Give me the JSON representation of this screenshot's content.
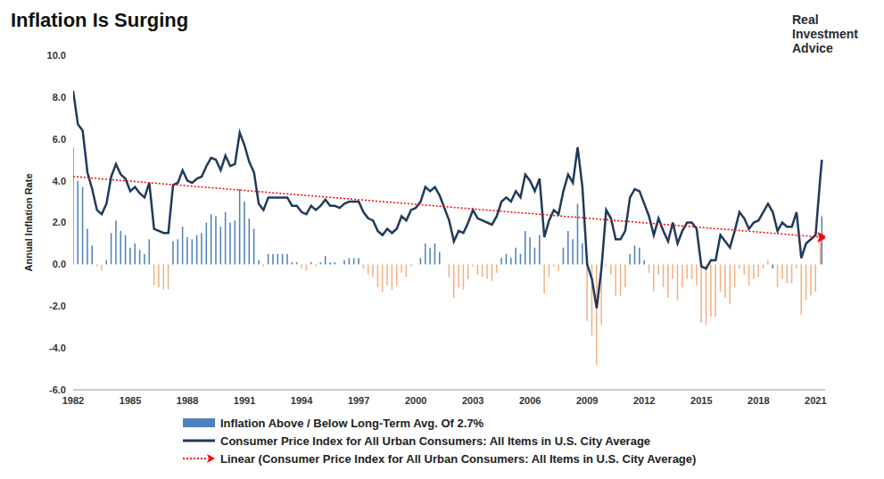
{
  "chart_data": {
    "type": "line",
    "title": "Inflation Is Surging",
    "logo": "Real Investment Advice",
    "y_label": "Annual Inflation Rate",
    "x": [
      1982,
      1982.25,
      1982.5,
      1982.75,
      1983,
      1983.25,
      1983.5,
      1983.75,
      1984,
      1984.25,
      1984.5,
      1984.75,
      1985,
      1985.25,
      1985.5,
      1985.75,
      1986,
      1986.25,
      1986.5,
      1986.75,
      1987,
      1987.25,
      1987.5,
      1987.75,
      1988,
      1988.25,
      1988.5,
      1988.75,
      1989,
      1989.25,
      1989.5,
      1989.75,
      1990,
      1990.25,
      1990.5,
      1990.75,
      1991,
      1991.25,
      1991.5,
      1991.75,
      1992,
      1992.25,
      1992.5,
      1992.75,
      1993,
      1993.25,
      1993.5,
      1993.75,
      1994,
      1994.25,
      1994.5,
      1994.75,
      1995,
      1995.25,
      1995.5,
      1995.75,
      1996,
      1996.25,
      1996.5,
      1996.75,
      1997,
      1997.25,
      1997.5,
      1997.75,
      1998,
      1998.25,
      1998.5,
      1998.75,
      1999,
      1999.25,
      1999.5,
      1999.75,
      2000,
      2000.25,
      2000.5,
      2000.75,
      2001,
      2001.25,
      2001.5,
      2001.75,
      2002,
      2002.25,
      2002.5,
      2002.75,
      2003,
      2003.25,
      2003.5,
      2003.75,
      2004,
      2004.25,
      2004.5,
      2004.75,
      2005,
      2005.25,
      2005.5,
      2005.75,
      2006,
      2006.25,
      2006.5,
      2006.75,
      2007,
      2007.25,
      2007.5,
      2007.75,
      2008,
      2008.25,
      2008.5,
      2008.75,
      2009,
      2009.25,
      2009.5,
      2009.75,
      2010,
      2010.25,
      2010.5,
      2010.75,
      2011,
      2011.25,
      2011.5,
      2011.75,
      2012,
      2012.25,
      2012.5,
      2012.75,
      2013,
      2013.25,
      2013.5,
      2013.75,
      2014,
      2014.25,
      2014.5,
      2014.75,
      2015,
      2015.25,
      2015.5,
      2015.75,
      2016,
      2016.25,
      2016.5,
      2016.75,
      2017,
      2017.25,
      2017.5,
      2017.75,
      2018,
      2018.25,
      2018.5,
      2018.75,
      2019,
      2019.25,
      2019.5,
      2019.75,
      2020,
      2020.25,
      2020.5,
      2020.75,
      2021,
      2021.25,
      2021.33
    ],
    "series": [
      {
        "name": "Inflation Above / Below Long-Term Avg. Of 2.7%",
        "type": "bar",
        "color": "#4f81bd",
        "values": [
          5.6,
          4.0,
          3.7,
          1.7,
          0.9,
          -0.1,
          -0.3,
          0.2,
          1.5,
          2.1,
          1.6,
          1.4,
          0.8,
          1.0,
          0.7,
          0.5,
          1.2,
          -1.0,
          -1.1,
          -1.2,
          -1.2,
          1.1,
          1.2,
          1.8,
          1.3,
          1.2,
          1.4,
          1.5,
          2.0,
          2.4,
          2.3,
          1.8,
          2.5,
          2.0,
          2.1,
          3.6,
          3.0,
          2.2,
          1.7,
          0.2,
          -0.1,
          0.5,
          0.5,
          0.5,
          0.5,
          0.5,
          0.1,
          0.1,
          -0.2,
          -0.3,
          0.1,
          -0.1,
          0.1,
          0.4,
          0.1,
          0.1,
          0.0,
          0.2,
          0.3,
          0.3,
          0.3,
          -0.2,
          -0.5,
          -0.6,
          -1.1,
          -1.3,
          -1.0,
          -1.2,
          -1.0,
          -0.4,
          -0.6,
          -0.1,
          0.0,
          0.3,
          1.0,
          0.8,
          1.0,
          0.6,
          0.0,
          -0.6,
          -1.6,
          -1.1,
          -1.2,
          -0.7,
          -0.1,
          -0.5,
          -0.6,
          -0.7,
          -0.8,
          -0.4,
          0.3,
          0.5,
          0.3,
          0.8,
          0.5,
          1.6,
          1.3,
          0.8,
          1.4,
          -1.4,
          -0.6,
          -0.1,
          -0.3,
          0.8,
          1.6,
          1.2,
          2.9,
          1.0,
          -2.7,
          -3.4,
          -4.8,
          -2.9,
          -0.1,
          -0.5,
          -1.5,
          -1.5,
          -1.1,
          0.5,
          0.9,
          0.8,
          0.2,
          -0.4,
          -1.3,
          -0.5,
          -1.1,
          -1.6,
          -0.7,
          -1.7,
          -1.1,
          -0.7,
          -0.7,
          -1.0,
          -2.8,
          -2.9,
          -2.5,
          -2.5,
          -1.3,
          -1.6,
          -1.9,
          -1.1,
          -0.2,
          -0.5,
          -1.0,
          -0.7,
          -0.6,
          -0.2,
          0.2,
          -0.2,
          -1.1,
          -0.7,
          -0.9,
          -0.9,
          -0.2,
          -2.4,
          -1.7,
          -1.5,
          -1.3,
          1.5,
          2.3
        ],
        "colors": [
          "#4f81bd",
          "#4f81bd",
          "#4f81bd",
          "#4f81bd",
          "#4f81bd",
          "#f4b183",
          "#f4b183",
          "#4f81bd",
          "#4f81bd",
          "#4f81bd",
          "#4f81bd",
          "#4f81bd",
          "#4f81bd",
          "#4f81bd",
          "#4f81bd",
          "#4f81bd",
          "#4f81bd",
          "#f4b183",
          "#f4b183",
          "#f4b183",
          "#f4b183",
          "#4f81bd",
          "#4f81bd",
          "#4f81bd",
          "#4f81bd",
          "#4f81bd",
          "#4f81bd",
          "#4f81bd",
          "#4f81bd",
          "#4f81bd",
          "#4f81bd",
          "#4f81bd",
          "#4f81bd",
          "#4f81bd",
          "#4f81bd",
          "#4f81bd",
          "#4f81bd",
          "#4f81bd",
          "#4f81bd",
          "#4f81bd",
          "#f4b183",
          "#4f81bd",
          "#4f81bd",
          "#4f81bd",
          "#4f81bd",
          "#4f81bd",
          "#4f81bd",
          "#4f81bd",
          "#f4b183",
          "#f4b183",
          "#4f81bd",
          "#f4b183",
          "#4f81bd",
          "#4f81bd",
          "#4f81bd",
          "#4f81bd",
          "#4f81bd",
          "#4f81bd",
          "#4f81bd",
          "#4f81bd",
          "#4f81bd",
          "#f4b183",
          "#f4b183",
          "#f4b183",
          "#f4b183",
          "#f4b183",
          "#f4b183",
          "#f4b183",
          "#f4b183",
          "#f4b183",
          "#f4b183",
          "#f4b183",
          "#4f81bd",
          "#4f81bd",
          "#4f81bd",
          "#4f81bd",
          "#4f81bd",
          "#4f81bd",
          "#4f81bd",
          "#f4b183",
          "#f4b183",
          "#f4b183",
          "#f4b183",
          "#f4b183",
          "#f4b183",
          "#f4b183",
          "#f4b183",
          "#f4b183",
          "#f4b183",
          "#f4b183",
          "#4f81bd",
          "#4f81bd",
          "#4f81bd",
          "#4f81bd",
          "#4f81bd",
          "#4f81bd",
          "#4f81bd",
          "#4f81bd",
          "#4f81bd",
          "#f4b183",
          "#f4b183",
          "#f4b183",
          "#f4b183",
          "#4f81bd",
          "#4f81bd",
          "#4f81bd",
          "#4f81bd",
          "#4f81bd",
          "#f4b183",
          "#f4b183",
          "#f4b183",
          "#f4b183",
          "#f4b183",
          "#f4b183",
          "#f4b183",
          "#f4b183",
          "#f4b183",
          "#4f81bd",
          "#4f81bd",
          "#4f81bd",
          "#4f81bd",
          "#f4b183",
          "#f4b183",
          "#f4b183",
          "#f4b183",
          "#f4b183",
          "#f4b183",
          "#f4b183",
          "#f4b183",
          "#f4b183",
          "#f4b183",
          "#f4b183",
          "#f4b183",
          "#f4b183",
          "#f4b183",
          "#f4b183",
          "#f4b183",
          "#f4b183",
          "#f4b183",
          "#f4b183",
          "#f4b183",
          "#f4b183",
          "#f4b183",
          "#f4b183",
          "#f4b183",
          "#f4b183",
          "#f4b183",
          "#4f81bd",
          "#f4b183",
          "#f4b183",
          "#f4b183",
          "#f4b183",
          "#f4b183",
          "#f4b183",
          "#f4b183",
          "#f4b183",
          "#f4b183",
          "#f4b183",
          "#4f81bd",
          "#4f81bd"
        ]
      },
      {
        "name": "Consumer Price Index for All Urban Consumers: All Items in U.S. City Average",
        "type": "line",
        "color": "#1f3a5a",
        "line_style": "solid",
        "values": [
          8.3,
          6.7,
          6.4,
          4.4,
          3.6,
          2.6,
          2.4,
          2.9,
          4.2,
          4.8,
          4.3,
          4.1,
          3.5,
          3.7,
          3.4,
          3.2,
          3.9,
          1.7,
          1.6,
          1.5,
          1.5,
          3.8,
          3.9,
          4.5,
          4.0,
          3.9,
          4.1,
          4.2,
          4.7,
          5.1,
          5.0,
          4.5,
          5.2,
          4.7,
          4.8,
          6.3,
          5.7,
          4.9,
          4.4,
          2.9,
          2.6,
          3.2,
          3.2,
          3.2,
          3.2,
          3.2,
          2.8,
          2.8,
          2.5,
          2.4,
          2.8,
          2.6,
          2.8,
          3.1,
          2.8,
          2.8,
          2.7,
          2.9,
          3.0,
          3.0,
          3.0,
          2.5,
          2.2,
          2.1,
          1.6,
          1.4,
          1.7,
          1.5,
          1.7,
          2.3,
          2.1,
          2.6,
          2.7,
          3.0,
          3.7,
          3.5,
          3.7,
          3.3,
          2.7,
          2.1,
          1.1,
          1.6,
          1.5,
          2.0,
          2.6,
          2.2,
          2.1,
          2.0,
          1.9,
          2.3,
          3.0,
          3.2,
          3.0,
          3.5,
          3.2,
          4.3,
          4.0,
          3.5,
          4.1,
          1.3,
          2.1,
          2.6,
          2.4,
          3.5,
          4.3,
          3.9,
          5.6,
          3.7,
          0.0,
          -0.7,
          -2.1,
          -0.2,
          2.6,
          2.2,
          1.2,
          1.2,
          1.6,
          3.2,
          3.6,
          3.5,
          2.9,
          2.3,
          1.4,
          2.2,
          1.6,
          1.1,
          2.0,
          1.0,
          1.6,
          2.0,
          2.0,
          1.7,
          -0.1,
          -0.2,
          0.2,
          0.2,
          1.4,
          1.1,
          0.8,
          1.6,
          2.5,
          2.2,
          1.7,
          2.0,
          2.1,
          2.5,
          2.9,
          2.5,
          1.6,
          2.0,
          1.8,
          1.8,
          2.5,
          0.3,
          1.0,
          1.2,
          1.4,
          4.2,
          5.0
        ]
      },
      {
        "name": "Linear (Consumer Price Index for All Urban Consumers: All Items in U.S. City Average)",
        "type": "line",
        "color": "#ff0000",
        "line_style": "dotted",
        "marker": "arrow",
        "x": [
          1982,
          2021.33
        ],
        "values": [
          4.2,
          1.3
        ]
      }
    ],
    "xlim": [
      1982,
      2021.5
    ],
    "xticks": [
      1982,
      1985,
      1988,
      1991,
      1994,
      1997,
      2000,
      2003,
      2006,
      2009,
      2012,
      2015,
      2018,
      2021
    ],
    "ylim": [
      -6,
      10
    ],
    "yticks": [
      {
        "value": -6,
        "label": "-6.0"
      },
      {
        "value": -4,
        "label": "-4.0"
      },
      {
        "value": -2,
        "label": "-2.0"
      },
      {
        "value": 0,
        "label": "0.0"
      },
      {
        "value": 2,
        "label": "2.0"
      },
      {
        "value": 4,
        "label": "4.0"
      },
      {
        "value": 6,
        "label": "6.0"
      },
      {
        "value": 8,
        "label": "8.0"
      },
      {
        "value": 10,
        "label": "10.0"
      }
    ],
    "grid": false,
    "legend": "bottom"
  }
}
